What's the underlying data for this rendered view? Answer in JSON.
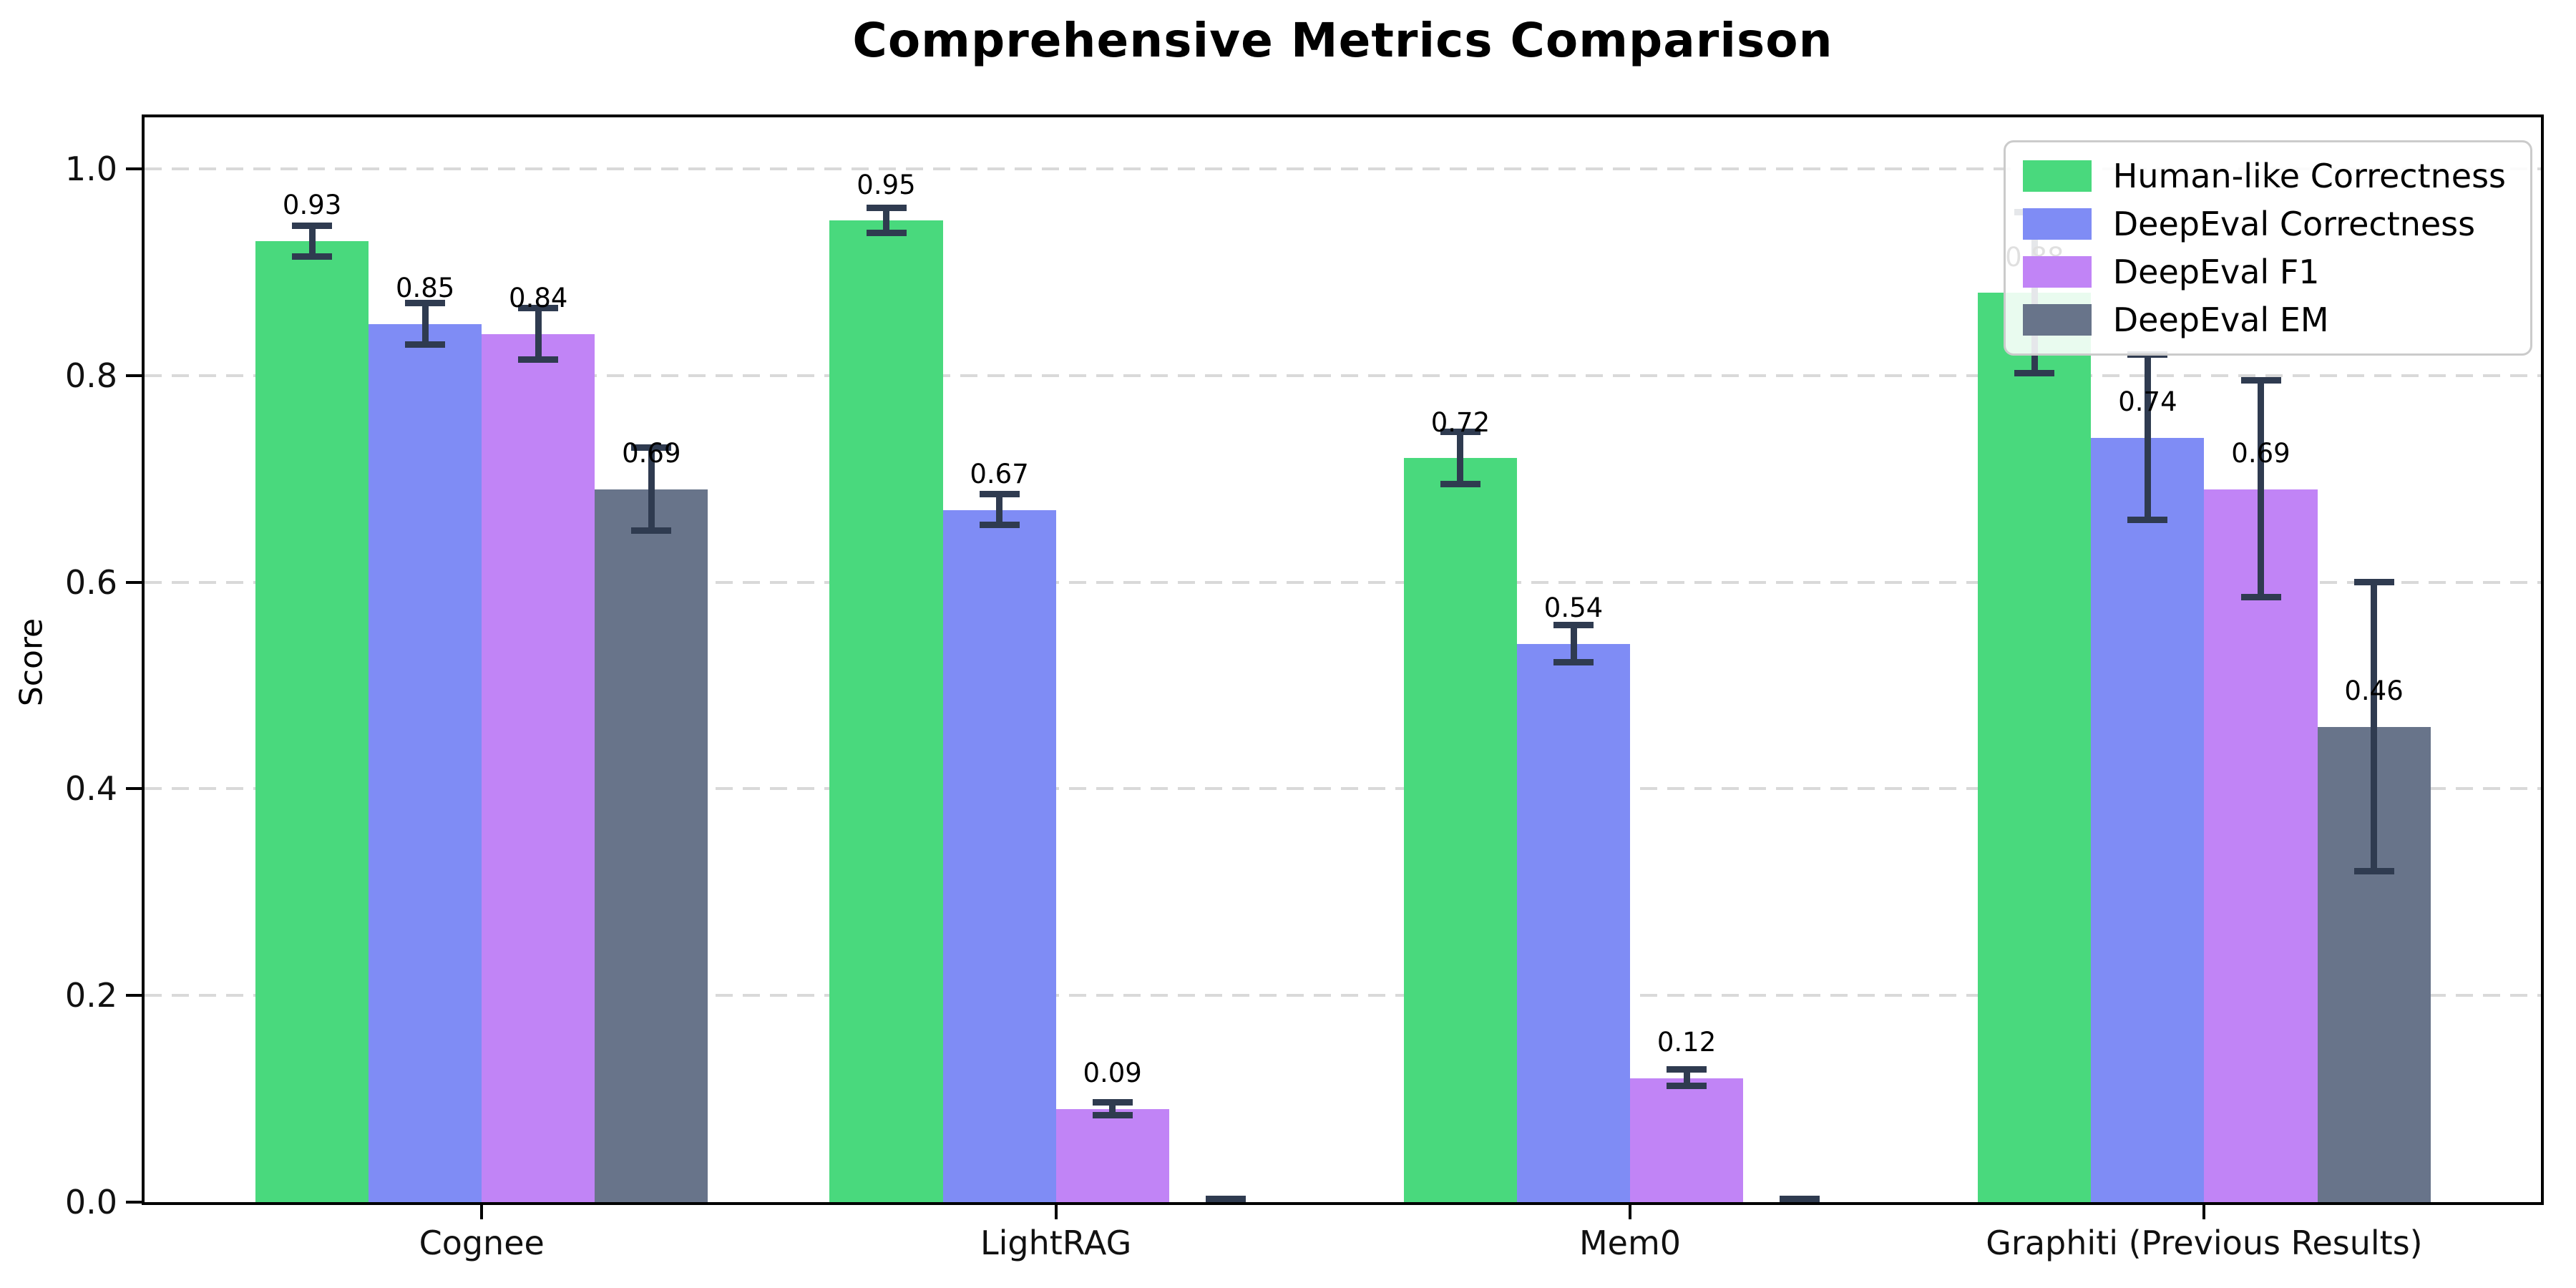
{
  "title": "Comprehensive Metrics Comparison",
  "chart_data": {
    "type": "bar",
    "title": "Comprehensive Metrics Comparison",
    "xlabel": "",
    "ylabel": "Score",
    "ylim": [
      0,
      1.05
    ],
    "yticks": [
      "0.0",
      "0.2",
      "0.4",
      "0.6",
      "0.8",
      "1.0"
    ],
    "grid": "horizontal dashed",
    "legend_position": "upper right",
    "categories": [
      "Cognee",
      "LightRAG",
      "Mem0",
      "Graphiti (Previous Results)"
    ],
    "series": [
      {
        "name": "Human-like Correctness",
        "color": "#49d97d",
        "values": [
          0.93,
          0.95,
          0.72,
          0.88
        ],
        "errors": [
          0.015,
          0.012,
          0.025,
          0.078
        ],
        "labels": [
          "0.93",
          "0.95",
          "0.72",
          "0.88"
        ]
      },
      {
        "name": "DeepEval Correctness",
        "color": "#7f8cf5",
        "values": [
          0.85,
          0.67,
          0.54,
          0.74
        ],
        "errors": [
          0.02,
          0.015,
          0.018,
          0.08
        ],
        "labels": [
          "0.85",
          "0.67",
          "0.54",
          "0.74"
        ]
      },
      {
        "name": "DeepEval F1",
        "color": "#c184f6",
        "values": [
          0.84,
          0.09,
          0.12,
          0.69
        ],
        "errors": [
          0.025,
          0.006,
          0.008,
          0.105
        ],
        "labels": [
          "0.84",
          "0.09",
          "0.12",
          "0.69"
        ]
      },
      {
        "name": "DeepEval EM",
        "color": "#68748a",
        "values": [
          0.69,
          0.0,
          0.0,
          0.46
        ],
        "errors": [
          0.04,
          0.003,
          0.003,
          0.14
        ],
        "labels": [
          "0.69",
          "",
          "",
          "0.46"
        ]
      }
    ],
    "colors": {
      "error_bar": "#2f3b50",
      "grid": "#d9d9d9",
      "axis": "#000000",
      "background": "#ffffff"
    }
  }
}
